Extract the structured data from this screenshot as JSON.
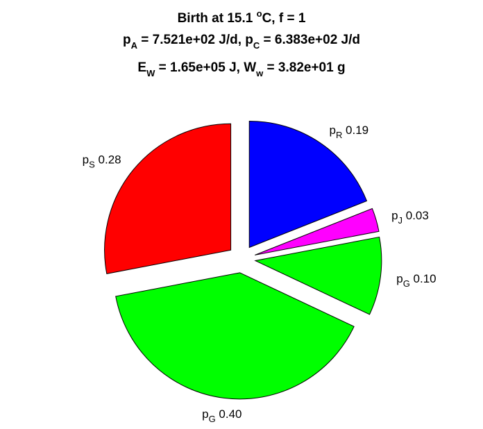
{
  "title": {
    "line1": {
      "pre": "Birth at 15.1 ",
      "sup": "o",
      "post": "C, f = 1"
    },
    "line2": {
      "a_main": "p",
      "a_sub": "A",
      "a_rest": " = 7.521e+02 J/d, ",
      "c_main": "p",
      "c_sub": "C",
      "c_rest": " = 6.383e+02 J/d"
    },
    "line3": {
      "e_main": "E",
      "e_sub": "W",
      "e_rest": " = 1.65e+05 J, ",
      "w_main": "W",
      "w_sub": "w",
      "w_rest": " = 3.82e+01 g"
    }
  },
  "chart_data": {
    "type": "pie",
    "exploded": true,
    "slices": [
      {
        "label_main": "p",
        "label_sub": "R",
        "value_text": "0.19",
        "value": 0.19,
        "color": "#0000ff"
      },
      {
        "label_main": "p",
        "label_sub": "J",
        "value_text": "0.03",
        "value": 0.03,
        "color": "#ff00ff"
      },
      {
        "label_main": "p",
        "label_sub": "G",
        "value_text": "0.10",
        "value": 0.1,
        "color": "#00ff00"
      },
      {
        "label_main": "p",
        "label_sub": "G",
        "value_text": "0.40",
        "value": 0.4,
        "color": "#00ff00"
      },
      {
        "label_main": "p",
        "label_sub": "S",
        "value_text": "0.28",
        "value": 0.28,
        "color": "#ff0000"
      }
    ]
  }
}
